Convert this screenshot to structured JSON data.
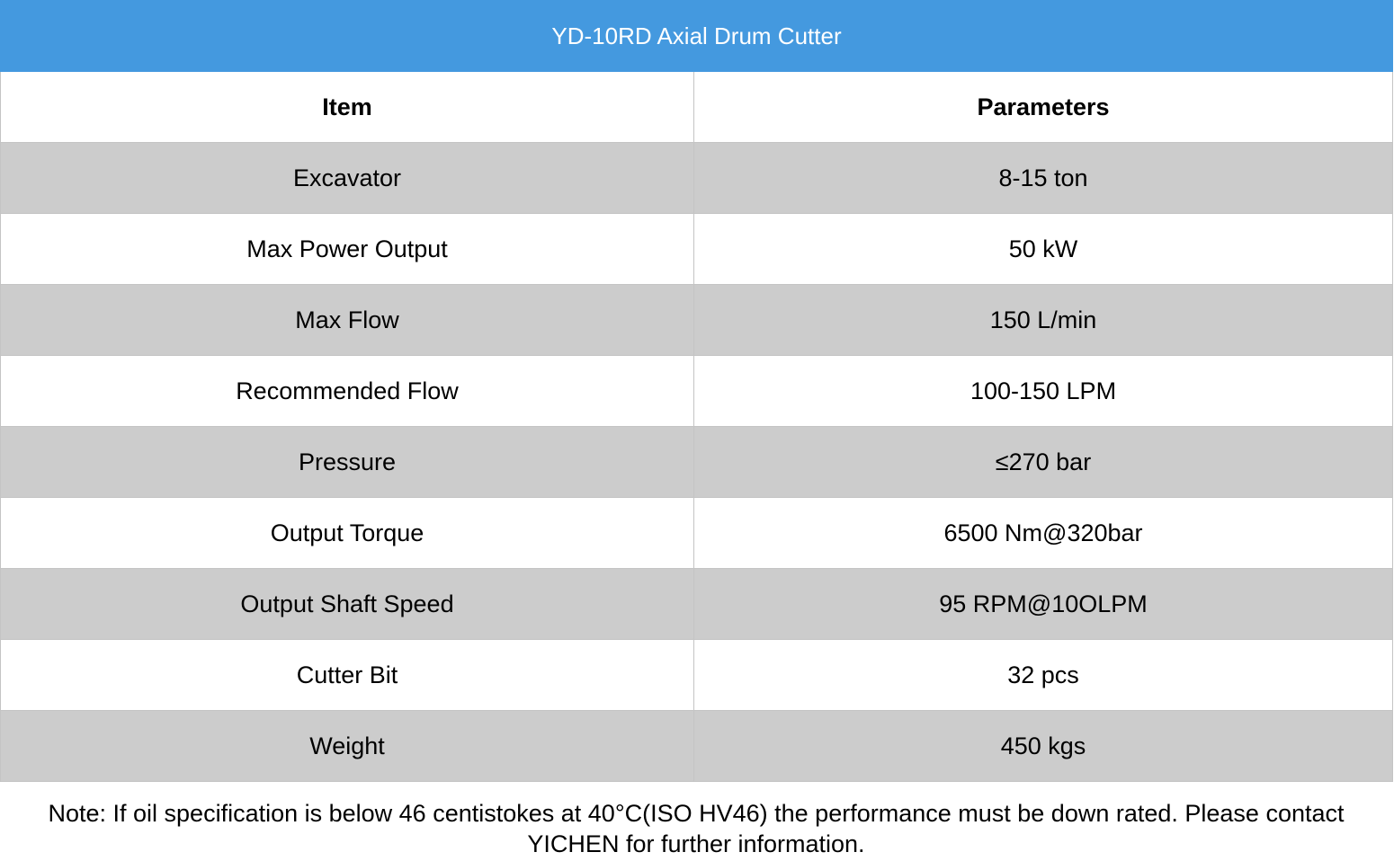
{
  "title": "YD-10RD Axial Drum Cutter",
  "headers": {
    "item": "Item",
    "parameters": "Parameters"
  },
  "rows": [
    {
      "item": "Excavator",
      "value": "8-15 ton"
    },
    {
      "item": "Max Power Output",
      "value": "50 kW"
    },
    {
      "item": "Max Flow",
      "value": "150 L/min"
    },
    {
      "item": "Recommended Flow",
      "value": "100-150 LPM"
    },
    {
      "item": "Pressure",
      "value": "≤270 bar"
    },
    {
      "item": "Output Torque",
      "value": "6500 Nm@320bar"
    },
    {
      "item": "Output Shaft Speed",
      "value": "95 RPM@10OLPM"
    },
    {
      "item": "Cutter Bit",
      "value": "32 pcs"
    },
    {
      "item": "Weight",
      "value": "450 kgs"
    }
  ],
  "note": "Note: If oil specification is below 46 centistokes at 40°C(ISO HV46) the performance must be down rated. Please contact YICHEN for further information.",
  "colors": {
    "title_bg": "#4499df",
    "shaded_row": "#cccccc",
    "border": "#c4c4c4"
  }
}
